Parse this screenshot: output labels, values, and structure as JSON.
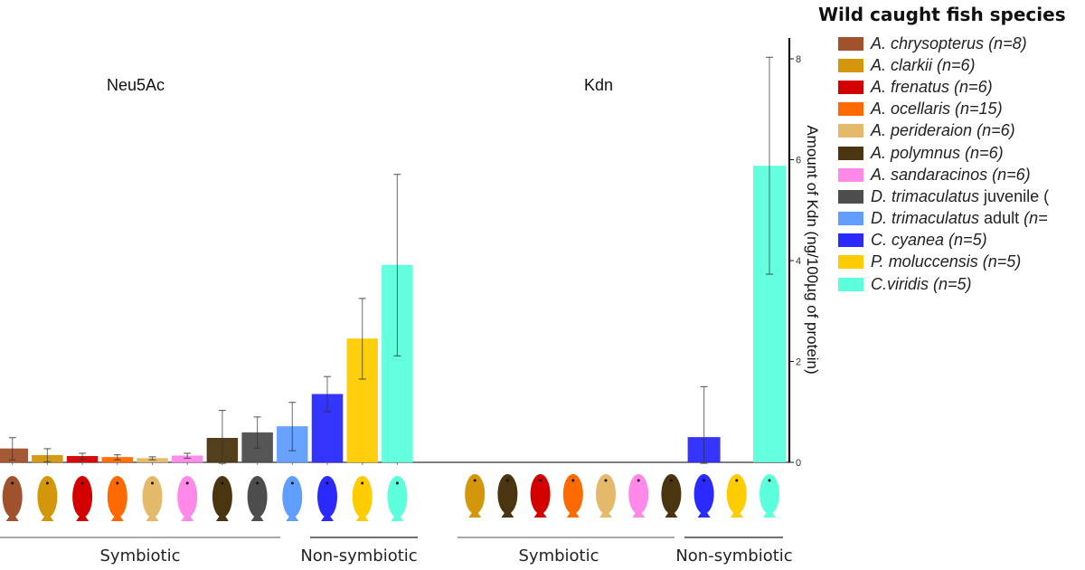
{
  "chart_data": {
    "type": "bar",
    "title": "",
    "legend": {
      "title": "Wild caught fish species",
      "placement": "right",
      "entries": [
        {
          "italic": "A. chrysopterus",
          "rest": " (n=8)",
          "color": "#A0522D"
        },
        {
          "italic": "A. clarkii",
          "rest": " (n=6)",
          "color": "#D4960A"
        },
        {
          "italic": "A. frenatus",
          "rest": " (n=6)",
          "color": "#D40000"
        },
        {
          "italic": "A. ocellaris",
          "rest": " (n=15)",
          "color": "#FF6A00"
        },
        {
          "italic": "A. perideraion",
          "rest": " (n=6)",
          "color": "#E5B96A"
        },
        {
          "italic": "A. polymnus",
          "rest": " (n=6)",
          "color": "#4A3510"
        },
        {
          "italic": "A. sandaracinos",
          "rest": " (n=6)",
          "color": "#FF88E8"
        },
        {
          "italic": "D. trimaculatus",
          "rest": " juvenile (",
          "color": "#4D4D4D"
        },
        {
          "italic": "D. trimaculatus",
          "rest": " adult (n=",
          "color": "#5F9EFF"
        },
        {
          "italic": "C. cyanea",
          "rest": " (n=5)",
          "color": "#2A2AFF"
        },
        {
          "italic": "P. moluccensis",
          "rest": " (n=5)",
          "color": "#FFCC00"
        },
        {
          "italic": "C.viridis",
          "rest": " (n=5)",
          "color": "#5CFFDC"
        }
      ]
    },
    "panels": [
      {
        "name": "Neu5Ac",
        "title": "Neu5Ac",
        "categories": [
          "A. chrysopterus",
          "A. clarkii",
          "A. frenatus",
          "A. ocellaris",
          "A. perideraion",
          "A. sandaracinos",
          "A. polymnus",
          "D. trimaculatus juvenile",
          "D. trimaculatus adult",
          "C. cyanea",
          "P. moluccensis",
          "C.viridis"
        ],
        "colors": [
          "#A0522D",
          "#D4960A",
          "#D40000",
          "#FF6A00",
          "#E5B96A",
          "#FF88E8",
          "#4A3510",
          "#4D4D4D",
          "#5F9EFF",
          "#2A2AFF",
          "#FFCC00",
          "#5CFFDC"
        ],
        "values": [
          0.27,
          0.14,
          0.12,
          0.1,
          0.08,
          0.13,
          0.48,
          0.59,
          0.71,
          1.35,
          2.45,
          3.91
        ],
        "errors": [
          0.22,
          0.13,
          0.06,
          0.05,
          0.03,
          0.05,
          0.55,
          0.31,
          0.48,
          0.35,
          0.8,
          1.8
        ],
        "groups": [
          {
            "label": "Symbiotic",
            "from": 0,
            "to": 8
          },
          {
            "label": "Non-symbiotic",
            "from": 9,
            "to": 11
          }
        ]
      },
      {
        "name": "Kdn",
        "title": "Kdn",
        "categories": [
          "A. clarkii",
          "A. polymnus",
          "A. frenatus",
          "A. ocellaris",
          "A. perideraion",
          "A. sandaracinos",
          "A. polymnus",
          "C. cyanea",
          "P. moluccensis",
          "C.viridis"
        ],
        "colors": [
          "#D4960A",
          "#4A3510",
          "#D40000",
          "#FF6A00",
          "#E5B96A",
          "#FF88E8",
          "#4A3510",
          "#2A2AFF",
          "#FFCC00",
          "#5CFFDC"
        ],
        "values": [
          0,
          0,
          0,
          0,
          0,
          0,
          0,
          0.5,
          0,
          5.88
        ],
        "errors": [
          0,
          0,
          0,
          0,
          0,
          0,
          0,
          1.0,
          0,
          2.15
        ],
        "groups": [
          {
            "label": "Symbiotic",
            "from": 0,
            "to": 6
          },
          {
            "label": "Non-symbiotic",
            "from": 7,
            "to": 9
          }
        ],
        "ylabel": "Amount of Kdn (ng/100µg of protein)",
        "ylim": [
          0,
          8.4
        ],
        "yticks": [
          0,
          2,
          4,
          6,
          8
        ]
      }
    ],
    "grid": false
  }
}
